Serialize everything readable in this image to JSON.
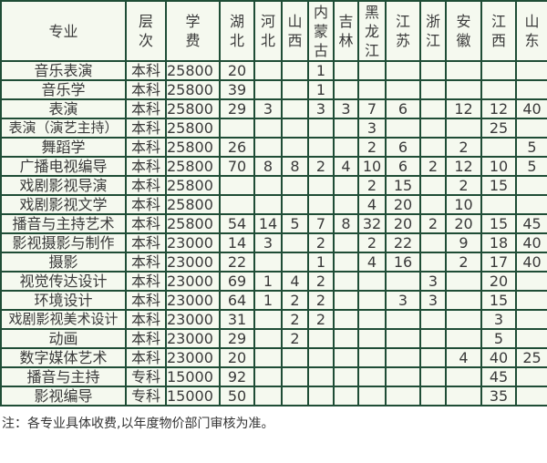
{
  "headers": [
    "专业",
    "层次",
    "学费",
    "湖北",
    "河北",
    "山西",
    "内蒙古",
    "吉林",
    "黑龙江",
    "江苏",
    "浙江",
    "安徽",
    "江西",
    "山东"
  ],
  "rows": [
    [
      "音乐表演",
      "本科",
      "25800",
      "20",
      "",
      "",
      "1",
      "",
      "",
      "",
      "",
      "",
      "",
      ""
    ],
    [
      "音乐学",
      "本科",
      "25800",
      "39",
      "",
      "",
      "1",
      "",
      "",
      "",
      "",
      "",
      "",
      ""
    ],
    [
      "表演",
      "本科",
      "25800",
      "29",
      "3",
      "",
      "3",
      "3",
      "7",
      "6",
      "",
      "12",
      "12",
      "40"
    ],
    [
      "表演（演艺主持）",
      "本科",
      "25800",
      "",
      "",
      "",
      "",
      "",
      "3",
      "",
      "",
      "",
      "25",
      ""
    ],
    [
      "舞蹈学",
      "本科",
      "25800",
      "26",
      "",
      "",
      "",
      "",
      "2",
      "6",
      "",
      "2",
      "",
      "5"
    ],
    [
      "广播电视编导",
      "本科",
      "25800",
      "70",
      "8",
      "8",
      "2",
      "4",
      "10",
      "6",
      "2",
      "12",
      "10",
      "5"
    ],
    [
      "戏剧影视导演",
      "本科",
      "25800",
      "",
      "",
      "",
      "",
      "",
      "2",
      "15",
      "",
      "2",
      "15",
      ""
    ],
    [
      "戏剧影视文学",
      "本科",
      "25800",
      "",
      "",
      "",
      "",
      "",
      "4",
      "20",
      "",
      "10",
      "",
      ""
    ],
    [
      "播音与主持艺术",
      "本科",
      "25800",
      "54",
      "14",
      "5",
      "7",
      "8",
      "32",
      "20",
      "2",
      "20",
      "15",
      "45"
    ],
    [
      "影视摄影与制作",
      "本科",
      "23000",
      "14",
      "3",
      "",
      "2",
      "",
      "2",
      "22",
      "",
      "9",
      "18",
      "40"
    ],
    [
      "摄影",
      "本科",
      "23000",
      "22",
      "",
      "",
      "1",
      "",
      "4",
      "16",
      "",
      "2",
      "17",
      "40"
    ],
    [
      "视觉传达设计",
      "本科",
      "23000",
      "69",
      "1",
      "4",
      "2",
      "",
      "",
      "",
      "3",
      "",
      "20",
      ""
    ],
    [
      "环境设计",
      "本科",
      "23000",
      "64",
      "1",
      "2",
      "2",
      "",
      "",
      "3",
      "3",
      "",
      "15",
      ""
    ],
    [
      "戏剧影视美术设计",
      "本科",
      "23000",
      "31",
      "",
      "2",
      "2",
      "",
      "",
      "",
      "",
      "",
      "3",
      ""
    ],
    [
      "动画",
      "本科",
      "23000",
      "29",
      "",
      "2",
      "",
      "",
      "",
      "",
      "",
      "",
      "5",
      ""
    ],
    [
      "数字媒体艺术",
      "本科",
      "23000",
      "20",
      "",
      "",
      "",
      "",
      "",
      "",
      "",
      "4",
      "40",
      "25"
    ],
    [
      "播音与主持",
      "专科",
      "15000",
      "92",
      "",
      "",
      "",
      "",
      "",
      "",
      "",
      "",
      "45",
      ""
    ],
    [
      "影视编导",
      "专科",
      "15000",
      "50",
      "",
      "",
      "",
      "",
      "",
      "",
      "",
      "",
      "35",
      ""
    ]
  ],
  "note": "注：各专业具体收费,以年度物价部门审核为准。",
  "colors": {
    "border": "#1f4d36",
    "background": "#f5f9ef"
  }
}
